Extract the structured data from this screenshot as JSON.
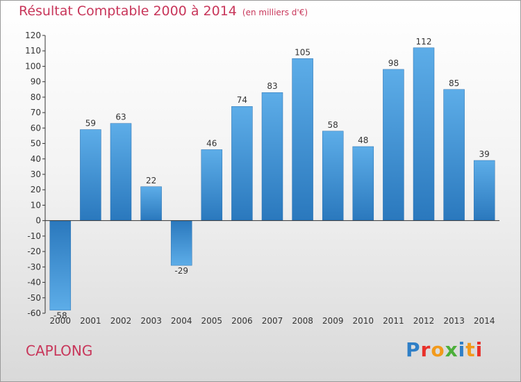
{
  "chart_data": {
    "type": "bar",
    "title": "Résultat Comptable 2000 à 2014",
    "subtitle": "(en milliers d'€)",
    "categories": [
      "2000",
      "2001",
      "2002",
      "2003",
      "2004",
      "2005",
      "2006",
      "2007",
      "2008",
      "2009",
      "2010",
      "2011",
      "2012",
      "2013",
      "2014"
    ],
    "values": [
      -58,
      59,
      63,
      22,
      -29,
      46,
      74,
      83,
      105,
      58,
      48,
      98,
      112,
      85,
      39
    ],
    "ylim": [
      -60,
      120
    ],
    "yticks": [
      -60,
      -50,
      -40,
      -30,
      -20,
      -10,
      0,
      10,
      20,
      30,
      40,
      50,
      60,
      70,
      80,
      90,
      100,
      110,
      120
    ],
    "xlabel": "",
    "ylabel": "",
    "grid": false,
    "bar_color": "#4da0e0",
    "bar_color_dark": "#2b78bd"
  },
  "footer": {
    "commune": "CAPLONG",
    "logo_letters": [
      "P",
      "r",
      "o",
      "x",
      "i",
      "t",
      "i"
    ],
    "logo_colors": [
      "#2f7fc7",
      "#e8302a",
      "#f29a1b",
      "#4caf3a",
      "#2f7fc7",
      "#f29a1b",
      "#e8302a"
    ]
  }
}
